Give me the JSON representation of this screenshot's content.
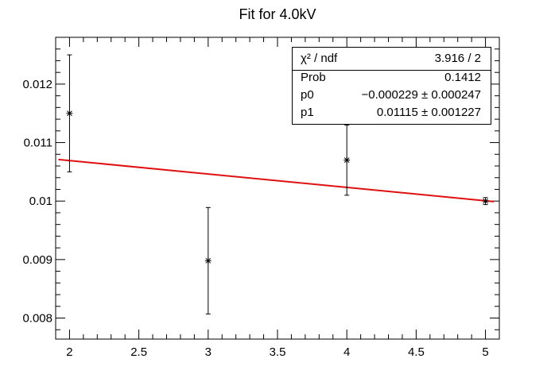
{
  "chart_data": {
    "type": "scatter",
    "title": "Fit for 4.0kV",
    "xlabel": "",
    "ylabel": "",
    "xlim": [
      1.9,
      5.1
    ],
    "ylim": [
      0.00764,
      0.0128
    ],
    "x_ticks": [
      "2",
      "2.5",
      "3",
      "3.5",
      "4",
      "4.5",
      "5"
    ],
    "y_ticks": [
      "0.008",
      "0.009",
      "0.01",
      "0.011",
      "0.012"
    ],
    "points": [
      {
        "x": 2,
        "y": 0.0115,
        "ey": 0.001
      },
      {
        "x": 3,
        "y": 0.00898,
        "ey": 0.00091
      },
      {
        "x": 4,
        "y": 0.0107,
        "ey": 0.0006
      },
      {
        "x": 5,
        "y": 0.01,
        "ey": 6e-05
      }
    ],
    "fit": {
      "p0": -0.000229,
      "p1": 0.01115,
      "x_range": [
        1.92,
        5.06
      ],
      "color": "#e01010"
    },
    "grid": false,
    "legend": "top-right"
  },
  "stats_box": {
    "rows": [
      {
        "label": "χ² / ndf",
        "value": "3.916 / 2"
      },
      {
        "label": "Prob",
        "value": "0.1412"
      },
      {
        "label": "p0",
        "value": "−0.000229 ± 0.000247"
      },
      {
        "label": "p1",
        "value": "0.01115 ± 0.001227"
      }
    ]
  }
}
